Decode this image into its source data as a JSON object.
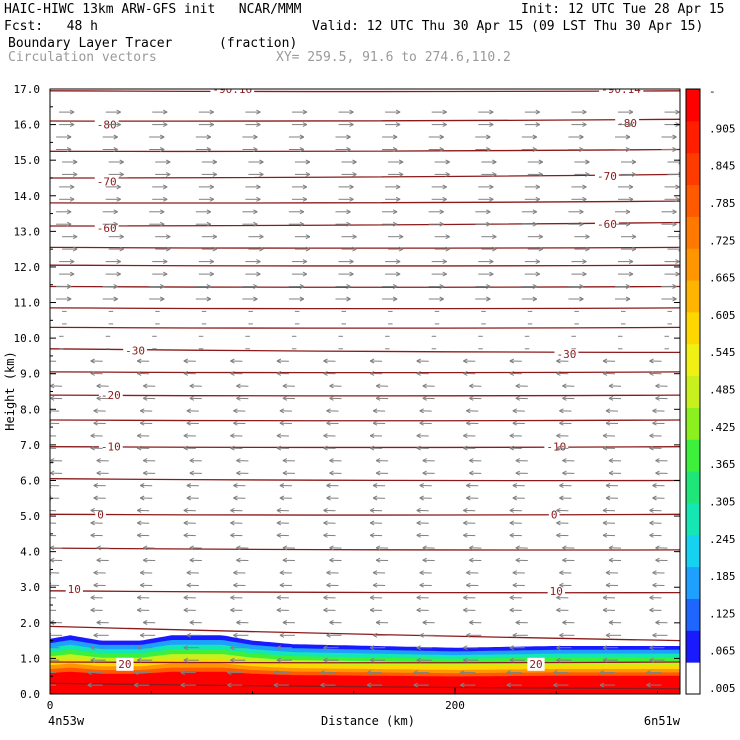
{
  "header": {
    "title_line1": "HAIC-HIWC 13km ARW-GFS init   NCAR/MMM",
    "init": "Init: 12 UTC Tue 28 Apr 15",
    "fcst": "Fcst:   48 h",
    "valid": "Valid: 12 UTC Thu 30 Apr 15 (09 LST Thu 30 Apr 15)",
    "field1": "Boundary Layer Tracer",
    "field1_units": "(fraction)",
    "field2": "Circulation vectors",
    "xy": "XY= 259.5, 91.6 to 274.6,110.2"
  },
  "colors": {
    "contour": "#8b1a1a",
    "vector": "#808080",
    "colorbar": [
      "#ffffff",
      "#1a1aff",
      "#1e66ff",
      "#1ea0ff",
      "#14d2f0",
      "#14e6b4",
      "#1ee678",
      "#3cf03c",
      "#8cf01e",
      "#c8f01e",
      "#f0f014",
      "#ffd700",
      "#ffb400",
      "#ff9600",
      "#ff7800",
      "#ff5a00",
      "#ff3c00",
      "#ff1e00",
      "#ff0000"
    ]
  },
  "chart_data": {
    "type": "cross-section",
    "xlabel": "Distance (km)",
    "ylabel": "Height (km)",
    "xlim": [
      0,
      312
    ],
    "ylim": [
      0.0,
      17.0
    ],
    "x_ticks": [
      "0",
      "200"
    ],
    "x_tick_values": [
      0,
      200
    ],
    "y_ticks": [
      "0.0",
      "1.0",
      "2.0",
      "3.0",
      "4.0",
      "5.0",
      "6.0",
      "7.0",
      "8.0",
      "9.0",
      "10.0",
      "11.0",
      "12.0",
      "13.0",
      "14.0",
      "15.0",
      "16.0",
      "17.0"
    ],
    "y_tick_values": [
      0,
      1,
      2,
      3,
      4,
      5,
      6,
      7,
      8,
      9,
      10,
      11,
      12,
      13,
      14,
      15,
      16,
      17
    ],
    "left_end_label": "4n53w",
    "right_end_label": "6n51w",
    "colorbar_labels": [
      "-",
      ".905",
      ".845",
      ".785",
      ".725",
      ".665",
      ".605",
      ".545",
      ".485",
      ".425",
      ".365",
      ".305",
      ".245",
      ".185",
      ".125",
      ".065",
      ".005"
    ],
    "colorbar_values": [
      0.935,
      0.905,
      0.845,
      0.785,
      0.725,
      0.665,
      0.605,
      0.545,
      0.485,
      0.425,
      0.365,
      0.305,
      0.245,
      0.185,
      0.125,
      0.065,
      0.005
    ],
    "temperature_contours": [
      {
        "height_left": 0.3,
        "height_right": 0.15
      },
      {
        "height_left": 0.9,
        "height_right": 0.9
      },
      {
        "height_left": 1.9,
        "height_right": 1.5
      },
      {
        "height_left": 2.9,
        "height_right": 2.85
      },
      {
        "height_left": 4.1,
        "height_right": 4.05
      },
      {
        "height_left": 5.05,
        "height_right": 5.05
      },
      {
        "height_left": 6.05,
        "height_right": 6.0
      },
      {
        "height_left": 6.95,
        "height_right": 6.95
      },
      {
        "height_left": 7.7,
        "height_right": 7.7
      },
      {
        "height_left": 8.4,
        "height_right": 8.4
      },
      {
        "height_left": 9.05,
        "height_right": 9.05
      },
      {
        "height_left": 9.7,
        "height_right": 9.6
      },
      {
        "height_left": 10.3,
        "height_right": 10.3
      },
      {
        "height_left": 10.85,
        "height_right": 10.85
      },
      {
        "height_left": 11.45,
        "height_right": 11.45
      },
      {
        "height_left": 12.05,
        "height_right": 12.05
      },
      {
        "height_left": 12.55,
        "height_right": 12.55
      },
      {
        "height_left": 13.15,
        "height_right": 13.25
      },
      {
        "height_left": 13.8,
        "height_right": 13.85
      },
      {
        "height_left": 14.5,
        "height_right": 14.6
      },
      {
        "height_left": 15.25,
        "height_right": 15.3
      },
      {
        "height_left": 16.1,
        "height_right": 16.15
      },
      {
        "height_left": 16.95,
        "height_right": 16.95
      }
    ],
    "contour_labels": [
      {
        "text": "-80",
        "x": 28,
        "y": 16.0
      },
      {
        "text": "-80",
        "x": 285,
        "y": 16.05
      },
      {
        "text": "-70",
        "x": 28,
        "y": 14.4
      },
      {
        "text": "-70",
        "x": 275,
        "y": 14.55
      },
      {
        "text": "-60",
        "x": 28,
        "y": 13.1
      },
      {
        "text": "-60",
        "x": 275,
        "y": 13.2
      },
      {
        "text": "-30",
        "x": 42,
        "y": 9.65
      },
      {
        "text": "-30",
        "x": 255,
        "y": 9.55
      },
      {
        "text": "-20",
        "x": 30,
        "y": 8.4
      },
      {
        "text": "-10",
        "x": 30,
        "y": 6.95
      },
      {
        "text": "-10",
        "x": 250,
        "y": 6.95
      },
      {
        "text": "0",
        "x": 25,
        "y": 5.05
      },
      {
        "text": "0",
        "x": 249,
        "y": 5.05
      },
      {
        "text": "10",
        "x": 12,
        "y": 2.95
      },
      {
        "text": "10",
        "x": 250,
        "y": 2.9
      },
      {
        "text": "20",
        "x": 37,
        "y": 0.85
      },
      {
        "text": "20",
        "x": 240,
        "y": 0.85
      },
      {
        "text": "-90.16",
        "x": 90,
        "y": 17.0
      },
      {
        "text": "-90.14",
        "x": 282,
        "y": 17.0
      }
    ],
    "tracer_top": [
      {
        "x": 0,
        "z": 1.55
      },
      {
        "x": 10,
        "z": 1.65
      },
      {
        "x": 25,
        "z": 1.5
      },
      {
        "x": 45,
        "z": 1.5
      },
      {
        "x": 60,
        "z": 1.65
      },
      {
        "x": 85,
        "z": 1.65
      },
      {
        "x": 100,
        "z": 1.5
      },
      {
        "x": 120,
        "z": 1.4
      },
      {
        "x": 160,
        "z": 1.35
      },
      {
        "x": 200,
        "z": 1.3
      },
      {
        "x": 250,
        "z": 1.35
      },
      {
        "x": 312,
        "z": 1.35
      }
    ],
    "vectors": [
      {
        "z_min": 0.0,
        "z_max": 1.9,
        "u": -1.0,
        "w": 0.0
      },
      {
        "z_min": 1.9,
        "z_max": 9.5,
        "u": -0.8,
        "w": 0.05
      },
      {
        "z_min": 9.5,
        "z_max": 11.0,
        "u": 0.3,
        "w": 0.0
      },
      {
        "z_min": 11.0,
        "z_max": 16.5,
        "u": 1.0,
        "w": 0.0
      }
    ]
  }
}
